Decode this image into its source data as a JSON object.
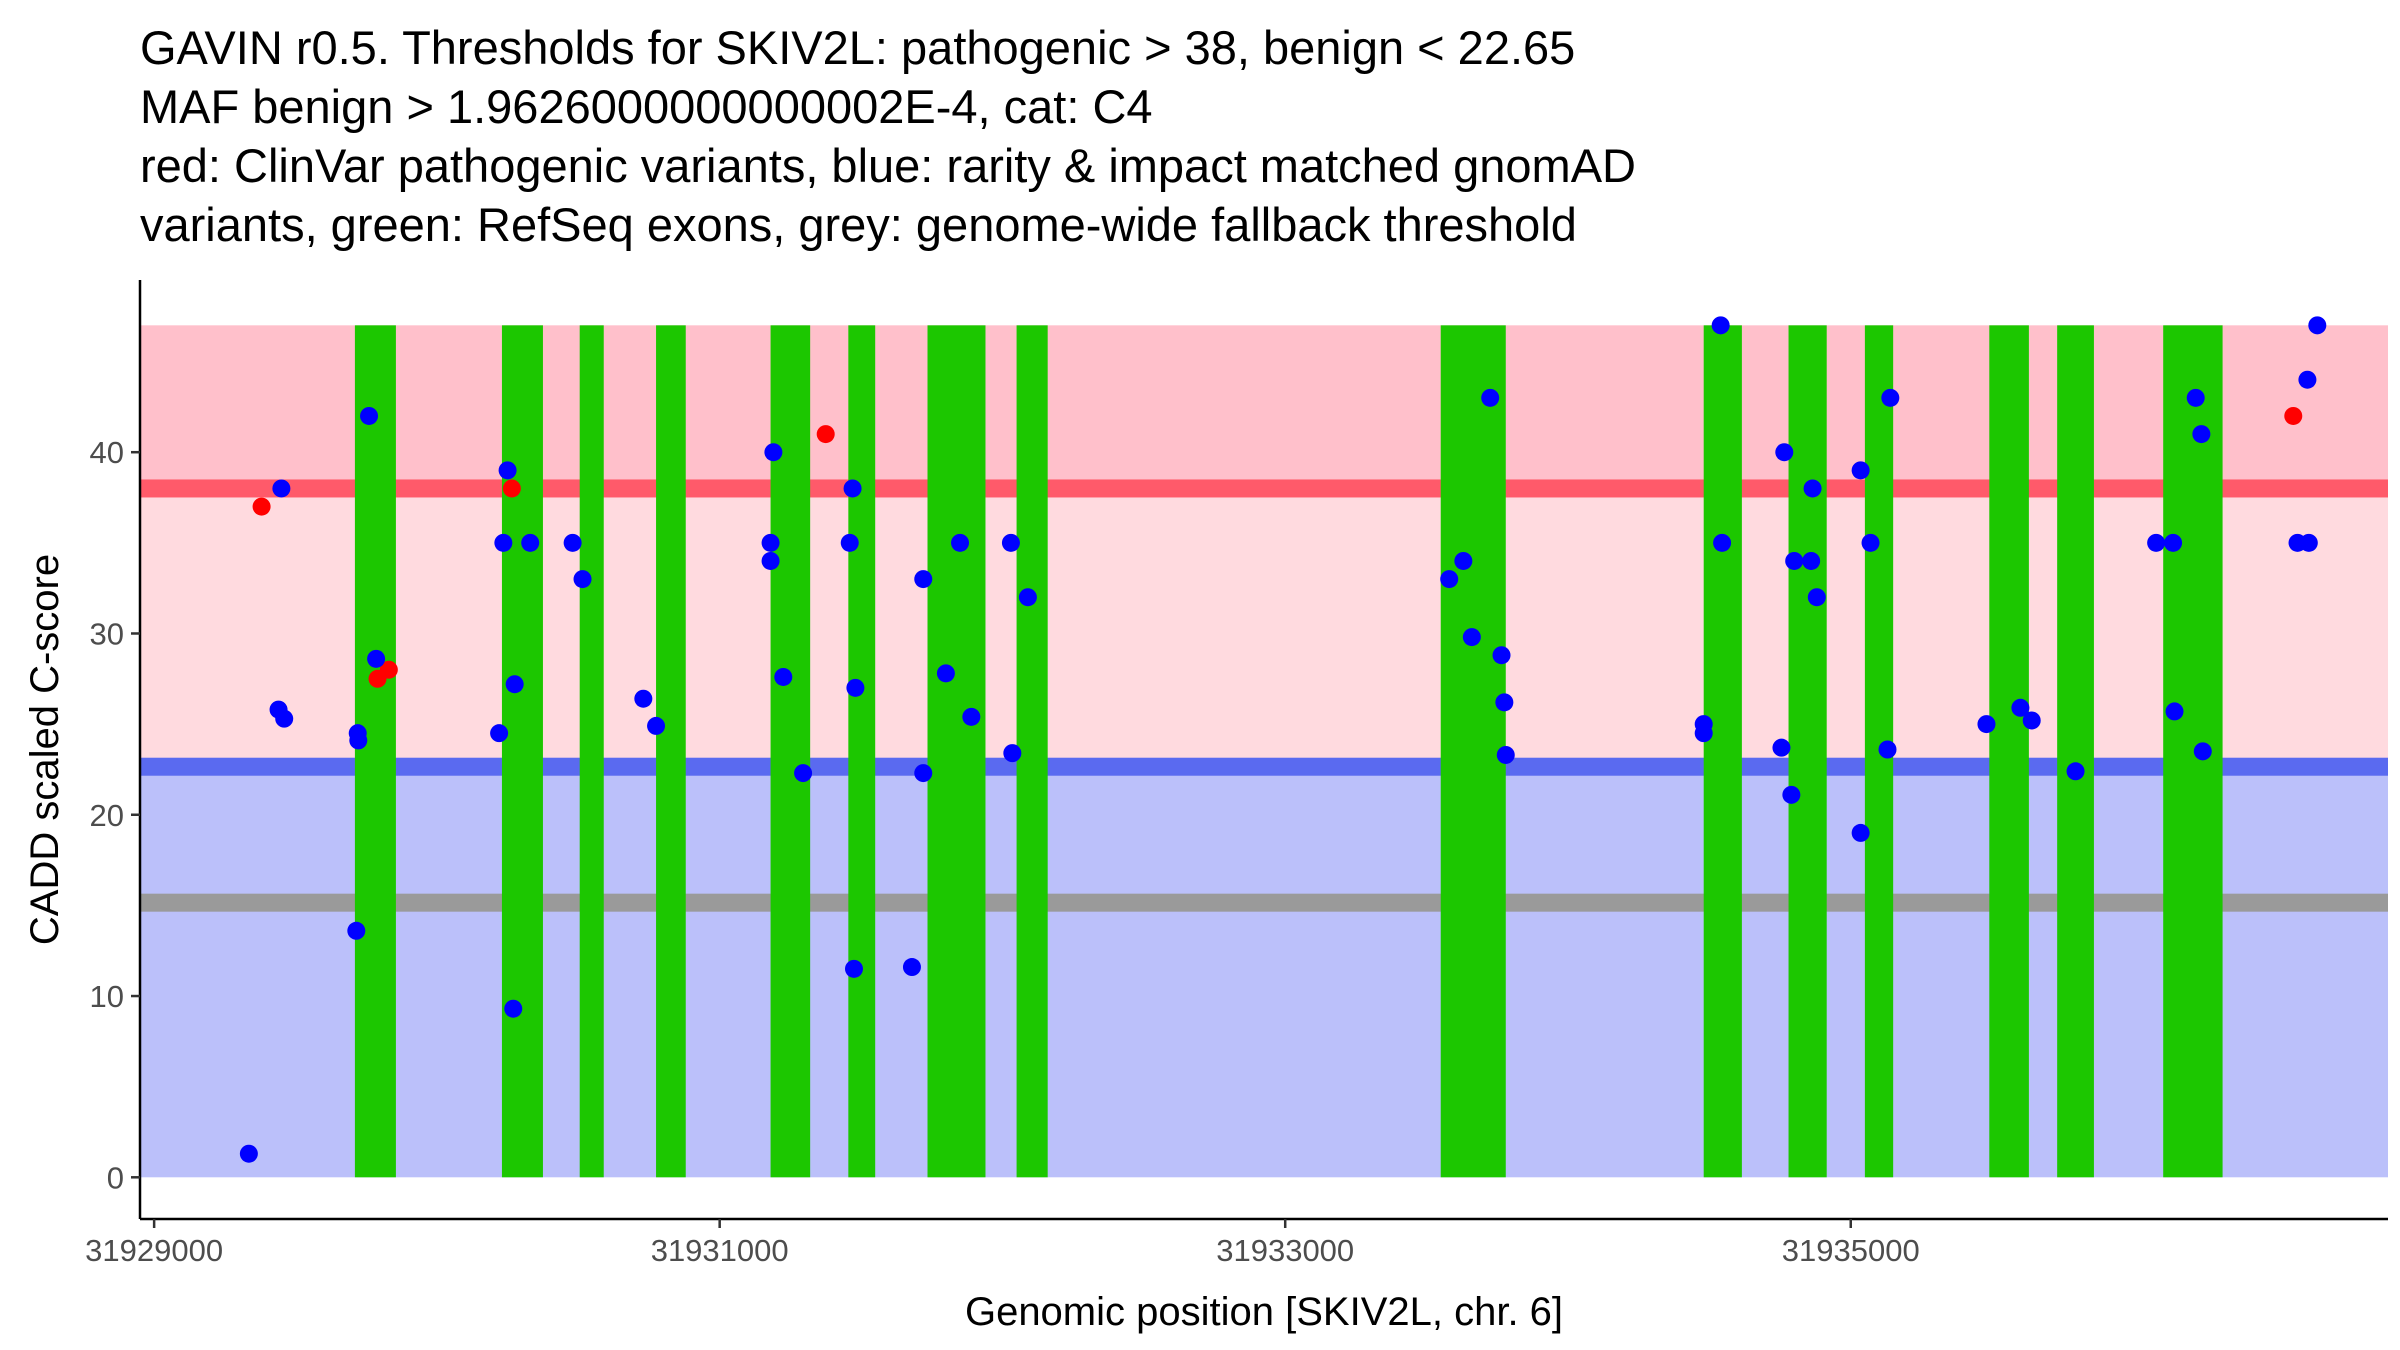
{
  "title_lines": [
    "GAVIN r0.5. Thresholds for SKIV2L: pathogenic > 38, benign < 22.65",
    "MAF benign > 1.9626000000000002E-4, cat: C4",
    "red: ClinVar pathogenic variants, blue: rarity & impact matched gnomAD",
    "variants, green: RefSeq exons, grey: genome-wide fallback threshold"
  ],
  "chart_data": {
    "type": "scatter",
    "title": "GAVIN r0.5. Thresholds for SKIV2L: pathogenic > 38, benign < 22.65 MAF benign > 1.9626000000000002E-4, cat: C4 red: ClinVar pathogenic variants, blue: rarity & impact matched gnomAD variants, green: RefSeq exons, grey: genome-wide fallback threshold",
    "xlabel": "Genomic position [SKIV2L, chr. 6]",
    "ylabel": "CADD scaled C-score",
    "xlim": [
      31928950,
      31936900
    ],
    "ylim": [
      -2.3,
      49.5
    ],
    "x_ticks": [
      31929000,
      31931000,
      31933000,
      31935000
    ],
    "x_tick_labels": [
      "31929000",
      "31931000",
      "31933000",
      "31935000"
    ],
    "y_ticks": [
      0,
      10,
      20,
      30,
      40
    ],
    "y_tick_labels": [
      "0",
      "10",
      "20",
      "30",
      "40"
    ],
    "grid": false,
    "colors": {
      "pathogenic_band": "#ffc0cb",
      "intermediate_band": "#ffdadf",
      "benign_band": "#bbc0fa",
      "pathogenic_threshold": "#ff5a6a",
      "benign_threshold": "#5a6af0",
      "fallback_threshold": "#9a9a9a",
      "exon": "#1cc700",
      "pathogenic_variant": "#ff0000",
      "population_variant": "#0000ff"
    },
    "score_max": 47,
    "thresholds": {
      "pathogenic": 38,
      "benign": 22.65,
      "fallback": 15.15
    },
    "exons": [
      [
        31929710,
        31929855
      ],
      [
        31930230,
        31930375
      ],
      [
        31930505,
        31930590
      ],
      [
        31930775,
        31930880
      ],
      [
        31931180,
        31931320
      ],
      [
        31931455,
        31931550
      ],
      [
        31931735,
        31931940
      ],
      [
        31932050,
        31932160
      ],
      [
        31933550,
        31933780
      ],
      [
        31934480,
        31934615
      ],
      [
        31934780,
        31934915
      ],
      [
        31935050,
        31935150
      ],
      [
        31935490,
        31935630
      ],
      [
        31935730,
        31935860
      ],
      [
        31936105,
        31936315
      ]
    ],
    "series": [
      {
        "name": "ClinVar pathogenic variants",
        "points": [
          [
            31929380,
            37
          ],
          [
            31929790,
            27.5
          ],
          [
            31929830,
            28
          ],
          [
            31930265,
            38
          ],
          [
            31931375,
            41
          ],
          [
            31936565,
            42
          ]
        ]
      },
      {
        "name": "rarity & impact matched gnomAD variants",
        "points": [
          [
            31929335,
            1.3
          ],
          [
            31929440,
            25.8
          ],
          [
            31929450,
            38
          ],
          [
            31929460,
            25.3
          ],
          [
            31929715,
            13.6
          ],
          [
            31929720,
            24.5
          ],
          [
            31929722,
            24.1
          ],
          [
            31929760,
            42
          ],
          [
            31929785,
            28.6
          ],
          [
            31930220,
            24.5
          ],
          [
            31930235,
            35
          ],
          [
            31930250,
            39
          ],
          [
            31930270,
            9.3
          ],
          [
            31930275,
            27.2
          ],
          [
            31930330,
            35
          ],
          [
            31930480,
            35
          ],
          [
            31930515,
            33
          ],
          [
            31930730,
            26.4
          ],
          [
            31930775,
            24.9
          ],
          [
            31931180,
            34
          ],
          [
            31931180,
            35
          ],
          [
            31931190,
            40
          ],
          [
            31931225,
            27.6
          ],
          [
            31931295,
            22.3
          ],
          [
            31931460,
            35
          ],
          [
            31931470,
            38
          ],
          [
            31931475,
            11.5
          ],
          [
            31931480,
            27
          ],
          [
            31931680,
            11.6
          ],
          [
            31931720,
            22.3
          ],
          [
            31931720,
            33
          ],
          [
            31931800,
            27.8
          ],
          [
            31931850,
            35
          ],
          [
            31931890,
            25.4
          ],
          [
            31932030,
            35
          ],
          [
            31932035,
            23.4
          ],
          [
            31932090,
            32
          ],
          [
            31933580,
            33
          ],
          [
            31933630,
            34
          ],
          [
            31933660,
            29.8
          ],
          [
            31933725,
            43
          ],
          [
            31933765,
            28.8
          ],
          [
            31933775,
            26.2
          ],
          [
            31933780,
            23.3
          ],
          [
            31934480,
            25
          ],
          [
            31934480,
            24.5
          ],
          [
            31934540,
            47
          ],
          [
            31934545,
            35
          ],
          [
            31934755,
            23.7
          ],
          [
            31934765,
            40
          ],
          [
            31934790,
            21.1
          ],
          [
            31934800,
            34
          ],
          [
            31934860,
            34
          ],
          [
            31934865,
            38
          ],
          [
            31934880,
            32
          ],
          [
            31935035,
            19
          ],
          [
            31935035,
            39
          ],
          [
            31935070,
            35
          ],
          [
            31935130,
            23.6
          ],
          [
            31935140,
            43
          ],
          [
            31935480,
            25
          ],
          [
            31935600,
            25.9
          ],
          [
            31935640,
            25.2
          ],
          [
            31935795,
            22.4
          ],
          [
            31936080,
            35
          ],
          [
            31936140,
            35
          ],
          [
            31936145,
            25.7
          ],
          [
            31936220,
            43
          ],
          [
            31936240,
            41
          ],
          [
            31936245,
            23.5
          ],
          [
            31936580,
            35
          ],
          [
            31936615,
            44
          ],
          [
            31936620,
            35
          ],
          [
            31936650,
            47
          ]
        ]
      }
    ]
  }
}
